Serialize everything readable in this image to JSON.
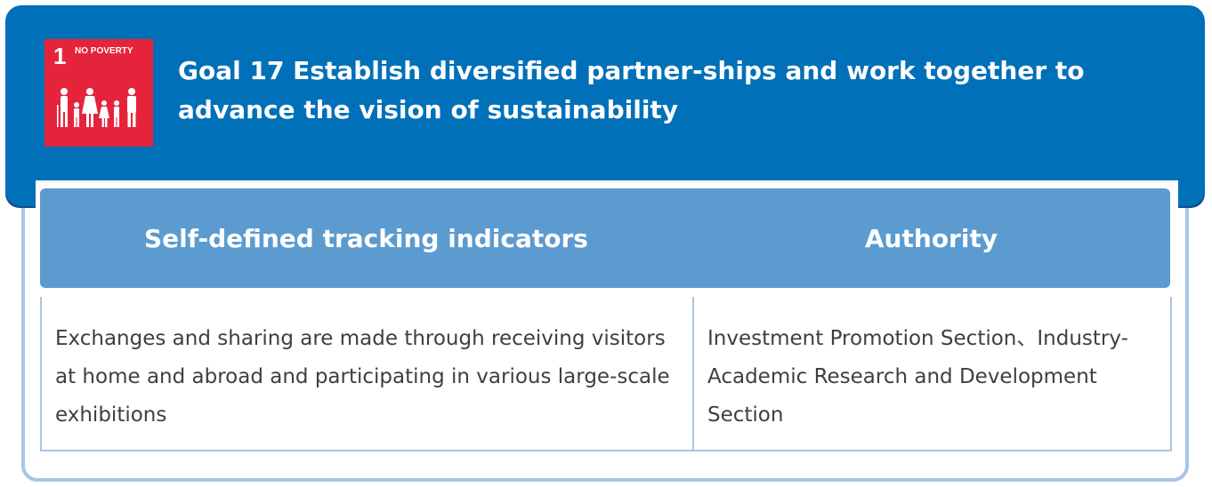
{
  "sdg_badge": {
    "number": "1",
    "label": "NO POVERTY",
    "color": "#e5243b",
    "icon": "family-icon"
  },
  "goal": {
    "title": "Goal 17 Establish diversified partner-ships and work together to advance the vision of sustainability"
  },
  "table": {
    "headers": {
      "indicators": "Self-defined tracking indicators",
      "authority": "Authority"
    },
    "rows": [
      {
        "indicators": "Exchanges and sharing are made through receiving visitors at home and abroad and participating in various large-scale exhibitions",
        "authority": "Investment Promotion Section、Industry-Academic Research and Development Section"
      }
    ]
  },
  "colors": {
    "banner": "#0070b8",
    "header_row": "#5b9bd0",
    "border": "#a9c5e6",
    "body_text": "#3f3f3f"
  }
}
